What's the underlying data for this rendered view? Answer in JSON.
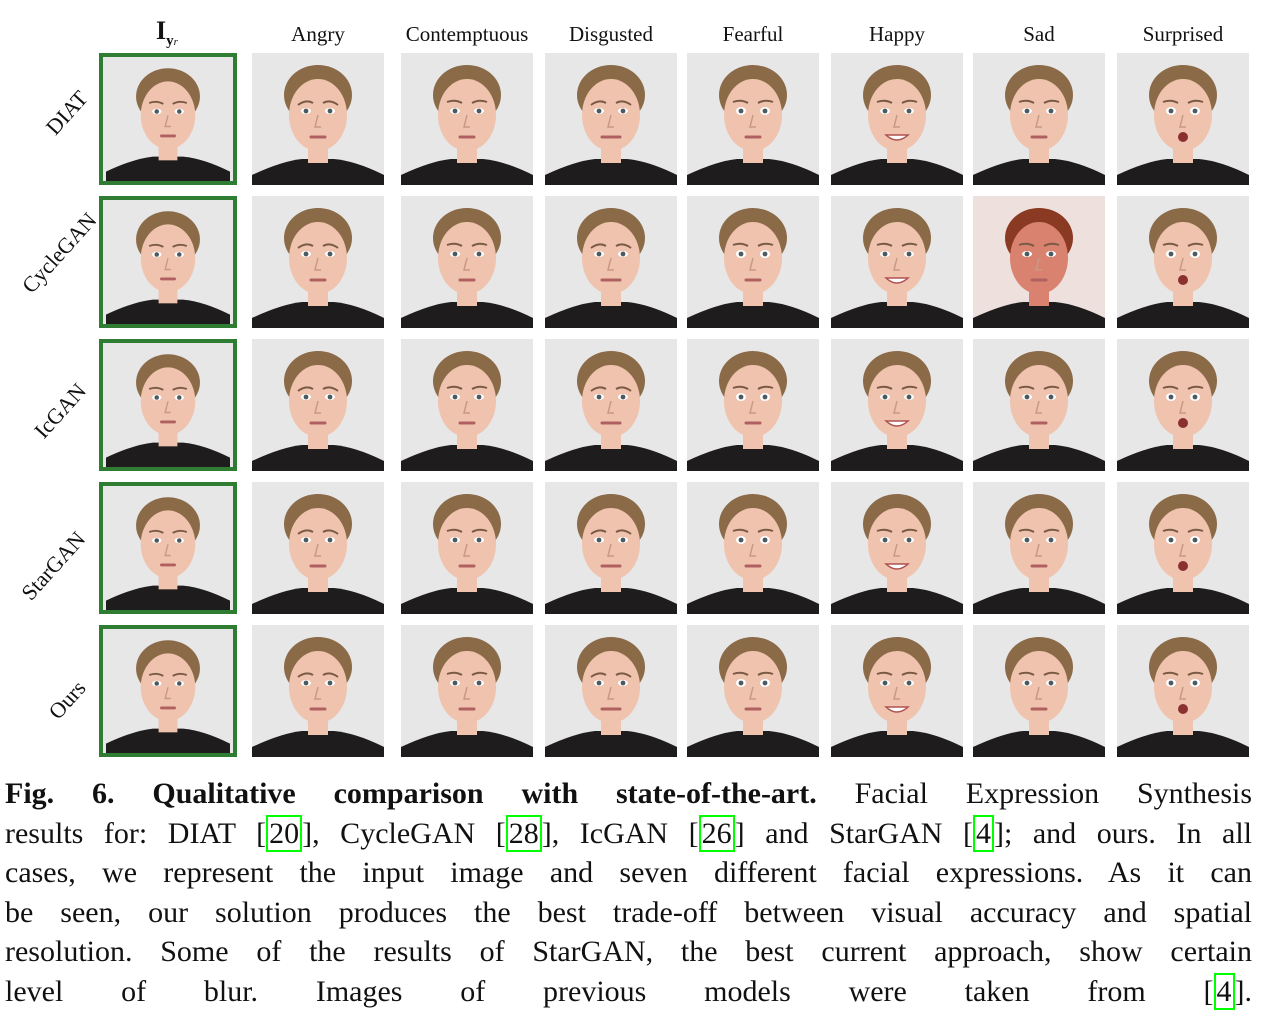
{
  "figure": {
    "input_column_label": {
      "main": "I",
      "sub": "y",
      "subsub": "r"
    },
    "columns": [
      "Angry",
      "Contemptuous",
      "Disgusted",
      "Fearful",
      "Happy",
      "Sad",
      "Surprised"
    ],
    "rows": [
      "DIAT",
      "CycleGAN",
      "IcGAN",
      "StarGAN",
      "Ours"
    ],
    "input_border_color": "#2e7d32"
  },
  "caption": {
    "title": "Fig. 6. Qualitative comparison with state-of-the-art.",
    "lines": [
      [
        {
          "b": "Fig. 6. Qualitative comparison with state-of-the-art."
        },
        {
          "t": " Facial Expression Synthesis"
        }
      ],
      [
        {
          "t": "results for: DIAT ["
        },
        {
          "c": "20"
        },
        {
          "t": "], CycleGAN ["
        },
        {
          "c": "28"
        },
        {
          "t": "], IcGAN ["
        },
        {
          "c": "26"
        },
        {
          "t": "] and StarGAN ["
        },
        {
          "c": "4"
        },
        {
          "t": "]; and ours. In all"
        }
      ],
      [
        {
          "t": "cases, we represent the input image and seven different facial expressions. As it can"
        }
      ],
      [
        {
          "t": "be seen, our solution produces the best trade-off between visual accuracy and spatial"
        }
      ],
      [
        {
          "t": "resolution. Some of the results of StarGAN, the best current approach, show certain"
        }
      ],
      [
        {
          "t": "level of blur. Images of previous models were taken from ["
        },
        {
          "c": "4"
        },
        {
          "t": "]."
        }
      ]
    ],
    "citation_box_color": "#00ff00"
  }
}
